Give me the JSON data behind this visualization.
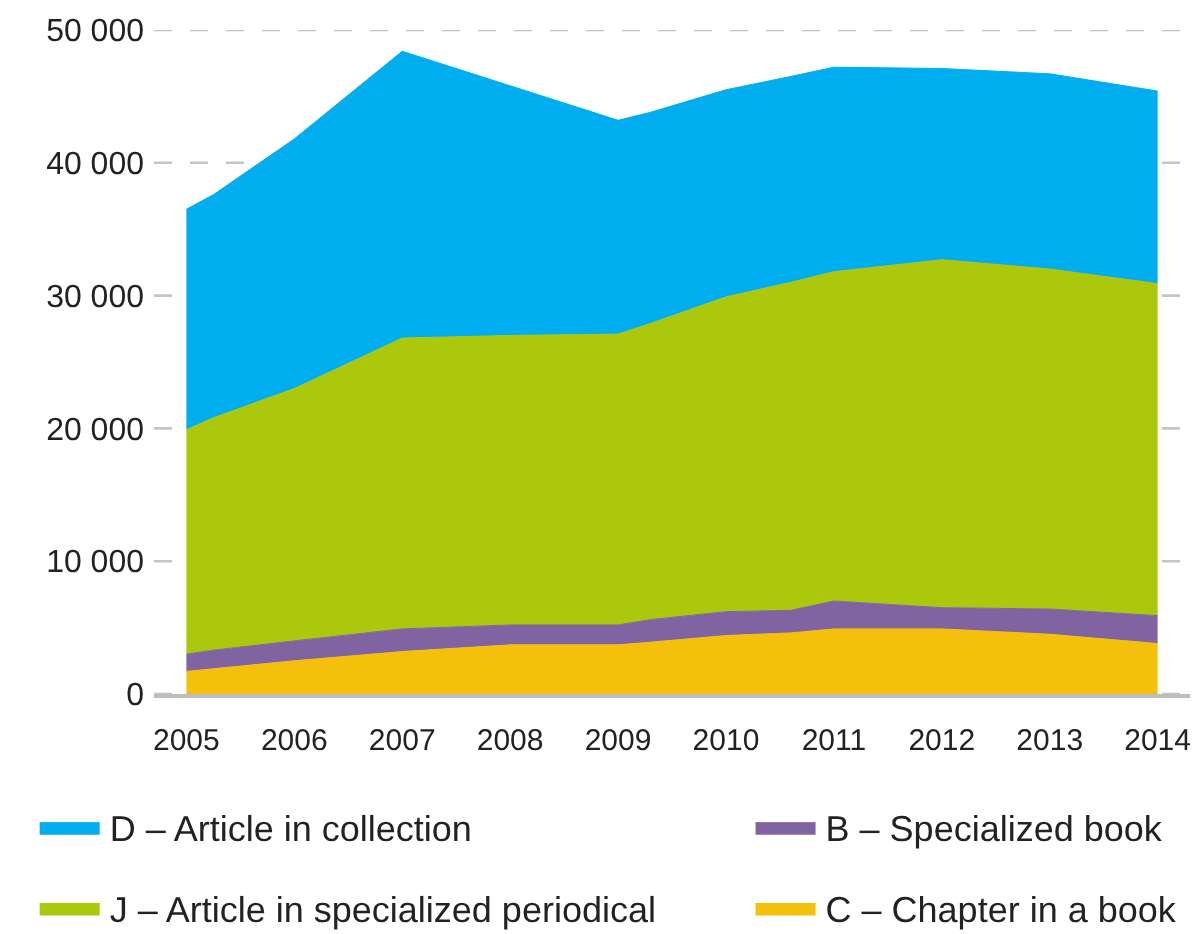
{
  "chart_data": {
    "type": "area",
    "stacked": true,
    "x": [
      2005,
      2005.25,
      2006,
      2007,
      2008,
      2009,
      2009.3,
      2010,
      2010.6,
      2011,
      2012,
      2013,
      2014
    ],
    "series": [
      {
        "name": "C – Chapter in a book",
        "color": "#f4c00b",
        "values": [
          1700,
          1900,
          2500,
          3200,
          3700,
          3700,
          3900,
          4400,
          4600,
          4900,
          4900,
          4500,
          3800
        ]
      },
      {
        "name": "B – Specialized book",
        "color": "#8064a2",
        "values": [
          1300,
          1400,
          1500,
          1700,
          1500,
          1500,
          1700,
          1800,
          1700,
          2100,
          1600,
          1900,
          2100
        ]
      },
      {
        "name": "J – Article in specialized periodical",
        "color": "#acc80d",
        "values": [
          16900,
          17500,
          19000,
          21900,
          21800,
          21900,
          22300,
          23700,
          24700,
          24800,
          26200,
          25600,
          25000
        ]
      },
      {
        "name": "D – Article in collection",
        "color": "#00aeef",
        "values": [
          16600,
          16800,
          18800,
          21600,
          18800,
          16100,
          15900,
          15600,
          15500,
          15400,
          14400,
          14700,
          14500
        ]
      }
    ],
    "xlim": [
      2004.7,
      2014.3
    ],
    "xticks": [
      2005,
      2006,
      2007,
      2008,
      2009,
      2010,
      2011,
      2012,
      2013,
      2014
    ],
    "ylim": [
      0,
      50000
    ],
    "yticks": [
      0,
      {
        "value": 10000,
        "label": "10 000"
      },
      {
        "value": 20000,
        "label": "20 000"
      },
      {
        "value": 30000,
        "label": "30 000"
      },
      {
        "value": 40000,
        "label": "40 000"
      },
      {
        "value": 50000,
        "label": "50 000"
      }
    ],
    "grid": "y",
    "legend": "bottom"
  }
}
